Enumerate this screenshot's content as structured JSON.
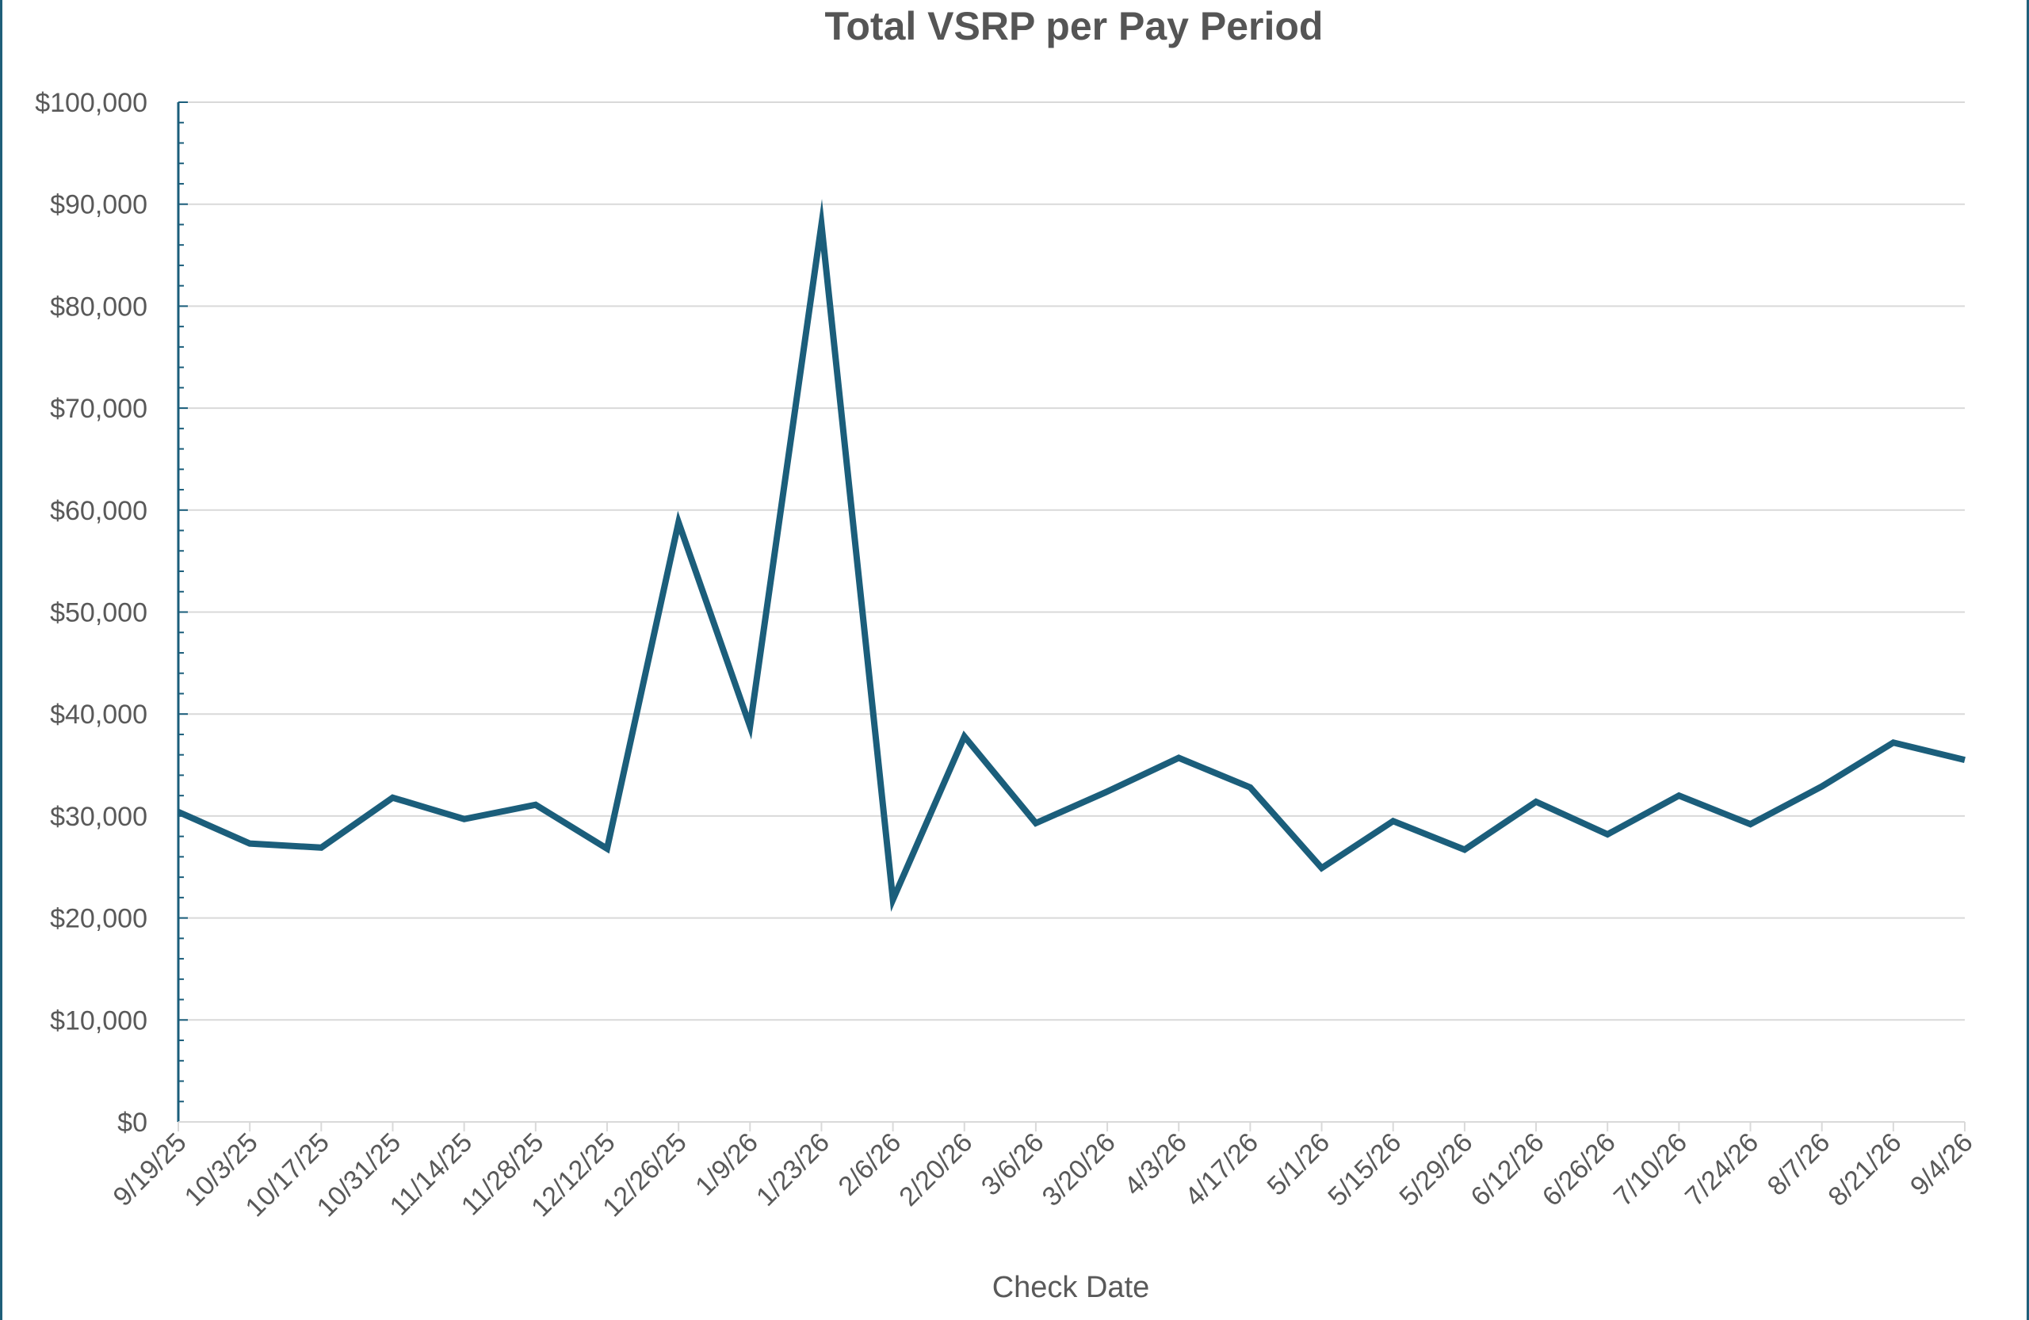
{
  "chart_data": {
    "type": "line",
    "title": "Total VSRP per Pay Period",
    "xlabel": "Check Date",
    "ylabel": "",
    "ylim": [
      0,
      100000
    ],
    "y_tick_labels": [
      "$0",
      "$10,000",
      "$20,000",
      "$30,000",
      "$40,000",
      "$50,000",
      "$60,000",
      "$70,000",
      "$80,000",
      "$90,000",
      "$100,000"
    ],
    "grid": true,
    "legend": "none",
    "colors": {
      "line": "#1b5e7b",
      "grid": "#d9d9d9",
      "axis": "#1b5e7b",
      "text": "#595959",
      "title": "#555555",
      "frame": "#1f5f7a"
    },
    "categories": [
      "9/19/25",
      "10/3/25",
      "10/17/25",
      "10/31/25",
      "11/14/25",
      "11/28/25",
      "12/12/25",
      "12/26/25",
      "1/9/26",
      "1/23/26",
      "2/6/26",
      "2/20/26",
      "3/6/26",
      "3/20/26",
      "4/3/26",
      "4/17/26",
      "5/1/26",
      "5/15/26",
      "5/29/26",
      "6/12/26",
      "6/26/26",
      "7/10/26",
      "7/24/26",
      "8/7/26",
      "8/21/26",
      "9/4/26"
    ],
    "series": [
      {
        "values": [
          30400,
          27300,
          26900,
          31800,
          29700,
          31100,
          26800,
          58800,
          38800,
          88000,
          21800,
          37800,
          29300,
          32400,
          35700,
          32800,
          24900,
          29500,
          26700,
          31400,
          28200,
          32000,
          29200,
          32900,
          37200,
          35500
        ]
      }
    ]
  }
}
